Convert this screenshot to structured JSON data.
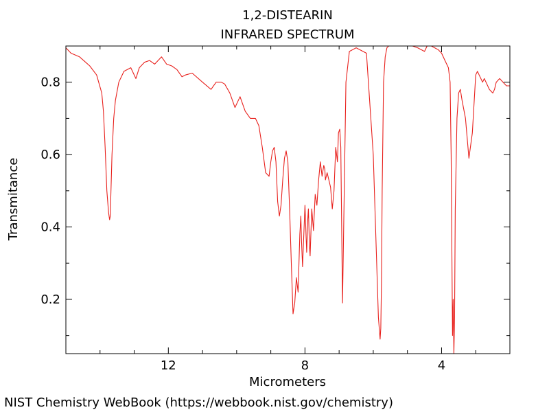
{
  "chart_data": {
    "type": "line",
    "title": "1,2-DISTEARIN",
    "subtitle": "INFRARED SPECTRUM",
    "xlabel": "Micrometers",
    "ylabel": "Transmitance",
    "x_reversed": true,
    "xlim": [
      15.0,
      2.0
    ],
    "ylim": [
      0.05,
      0.9
    ],
    "x_major_ticks": [
      12,
      8,
      4
    ],
    "x_tick_labels": [
      "12",
      "8",
      "4"
    ],
    "x_minor_ticks": [
      14,
      13,
      11,
      10,
      9,
      7,
      6,
      5,
      3
    ],
    "y_major_ticks": [
      0.2,
      0.4,
      0.6,
      0.8
    ],
    "y_tick_labels": [
      "0.2",
      "0.4",
      "0.6",
      "0.8"
    ],
    "y_minor_ticks": [
      0.1,
      0.3,
      0.5,
      0.7
    ],
    "grid": false,
    "line_color": "#e8201c",
    "series": [
      {
        "x": [
          15.0,
          14.85,
          14.6,
          14.3,
          14.1,
          13.95,
          13.9,
          13.85,
          13.8,
          13.75,
          13.72,
          13.7,
          13.68,
          13.65,
          13.6,
          13.55,
          13.45,
          13.3,
          13.1,
          12.95,
          12.85,
          12.7,
          12.55,
          12.4,
          12.2,
          12.05,
          11.9,
          11.75,
          11.6,
          11.5,
          11.3,
          11.0,
          10.75,
          10.6,
          10.45,
          10.35,
          10.2,
          10.05,
          9.9,
          9.75,
          9.6,
          9.45,
          9.35,
          9.25,
          9.15,
          9.05,
          9.0,
          8.95,
          8.9,
          8.85,
          8.8,
          8.75,
          8.7,
          8.65,
          8.6,
          8.55,
          8.5,
          8.45,
          8.4,
          8.35,
          8.3,
          8.25,
          8.2,
          8.15,
          8.12,
          8.1,
          8.07,
          8.05,
          8.0,
          7.97,
          7.95,
          7.92,
          7.9,
          7.87,
          7.85,
          7.8,
          7.75,
          7.7,
          7.65,
          7.6,
          7.55,
          7.5,
          7.45,
          7.42,
          7.4,
          7.35,
          7.3,
          7.25,
          7.2,
          7.15,
          7.1,
          7.05,
          7.02,
          6.98,
          6.95,
          6.9,
          6.8,
          6.7,
          6.5,
          6.2,
          6.0,
          5.9,
          5.85,
          5.8,
          5.78,
          5.76,
          5.74,
          5.7,
          5.65,
          5.6,
          5.5,
          5.3,
          5.0,
          4.7,
          4.5,
          4.4,
          4.3,
          4.1,
          4.0,
          3.9,
          3.8,
          3.75,
          3.72,
          3.7,
          3.68,
          3.66,
          3.64,
          3.62,
          3.6,
          3.55,
          3.5,
          3.45,
          3.4,
          3.3,
          3.2,
          3.1,
          3.0,
          2.95,
          2.9,
          2.85,
          2.8,
          2.75,
          2.7,
          2.6,
          2.5,
          2.45,
          2.4,
          2.3,
          2.2,
          2.1,
          2.0
        ],
        "y": [
          0.895,
          0.88,
          0.87,
          0.845,
          0.82,
          0.77,
          0.72,
          0.62,
          0.5,
          0.44,
          0.42,
          0.43,
          0.5,
          0.6,
          0.7,
          0.75,
          0.8,
          0.83,
          0.84,
          0.81,
          0.84,
          0.855,
          0.86,
          0.85,
          0.87,
          0.85,
          0.845,
          0.835,
          0.815,
          0.82,
          0.825,
          0.8,
          0.78,
          0.8,
          0.8,
          0.795,
          0.77,
          0.73,
          0.76,
          0.72,
          0.7,
          0.7,
          0.68,
          0.62,
          0.55,
          0.54,
          0.58,
          0.61,
          0.62,
          0.58,
          0.47,
          0.43,
          0.46,
          0.53,
          0.59,
          0.61,
          0.58,
          0.45,
          0.3,
          0.16,
          0.19,
          0.26,
          0.22,
          0.38,
          0.43,
          0.36,
          0.29,
          0.34,
          0.46,
          0.38,
          0.33,
          0.42,
          0.45,
          0.35,
          0.32,
          0.45,
          0.39,
          0.49,
          0.46,
          0.53,
          0.58,
          0.54,
          0.57,
          0.56,
          0.53,
          0.55,
          0.53,
          0.51,
          0.45,
          0.5,
          0.62,
          0.58,
          0.66,
          0.67,
          0.62,
          0.19,
          0.8,
          0.885,
          0.895,
          0.88,
          0.6,
          0.3,
          0.15,
          0.09,
          0.12,
          0.25,
          0.5,
          0.8,
          0.87,
          0.895,
          0.905,
          0.9,
          0.905,
          0.895,
          0.885,
          0.905,
          0.9,
          0.89,
          0.88,
          0.86,
          0.84,
          0.8,
          0.6,
          0.35,
          0.1,
          0.2,
          0.05,
          0.15,
          0.45,
          0.7,
          0.77,
          0.78,
          0.75,
          0.7,
          0.59,
          0.66,
          0.82,
          0.83,
          0.82,
          0.81,
          0.8,
          0.81,
          0.8,
          0.78,
          0.77,
          0.78,
          0.8,
          0.81,
          0.8,
          0.79,
          0.79
        ]
      }
    ]
  },
  "footer_text": "NIST Chemistry WebBook (https://webbook.nist.gov/chemistry)"
}
